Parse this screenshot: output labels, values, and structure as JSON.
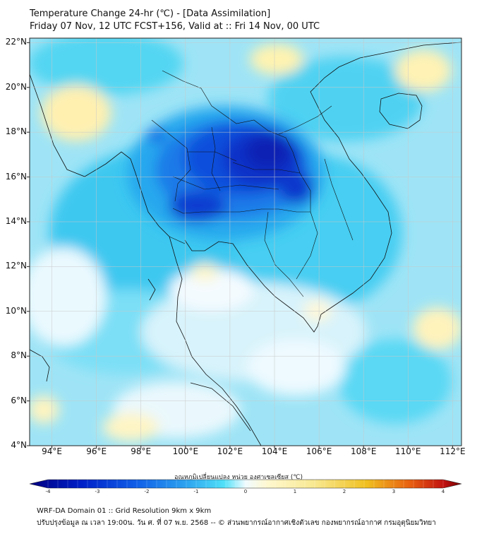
{
  "header": {
    "title_line1": "Temperature Change 24-hr (℃) - [Data Assimilation]",
    "title_line2": "Friday 07 Nov, 12 UTC FCST+156, Valid at :: Fri 14 Nov, 00 UTC"
  },
  "axes": {
    "lat_labels": [
      "22°N",
      "20°N",
      "18°N",
      "16°N",
      "14°N",
      "12°N",
      "10°N",
      "8°N",
      "6°N",
      "4°N"
    ],
    "lon_labels": [
      "94°E",
      "96°E",
      "98°E",
      "100°E",
      "102°E",
      "104°E",
      "106°E",
      "108°E",
      "110°E",
      "112°E"
    ],
    "lat_range": [
      4,
      22.2
    ],
    "lon_range": [
      93,
      112.4
    ]
  },
  "colorbar": {
    "title": "อุณหภูมิเปลี่ยนแปลง หน่วย องศาเซลเซียส (℃)",
    "tick_labels": [
      "-4",
      "-3",
      "-2",
      "-1",
      "0",
      "1",
      "2",
      "3",
      "4"
    ],
    "range": [
      -4,
      4
    ],
    "colors": [
      "#000080",
      "#0020c8",
      "#1060e8",
      "#30a8f0",
      "#50e0f8",
      "#e8f8ff",
      "#fff8d0",
      "#f8e890",
      "#f0c020",
      "#e86010",
      "#c01010",
      "#700000"
    ]
  },
  "footer": {
    "line1": "WRF-DA Domain 01 :: Grid Resolution 9km x 9km",
    "line2": "ปรับปรุงข้อมูล ณ เวลา 19:00น. วัน ศ. ที่ 07 พ.ย. 2568 -- © ส่วนพยากรณ์อากาศเชิงตัวเลข กองพยากรณ์อากาศ กรมอุตุนิยมวิทยา"
  }
}
